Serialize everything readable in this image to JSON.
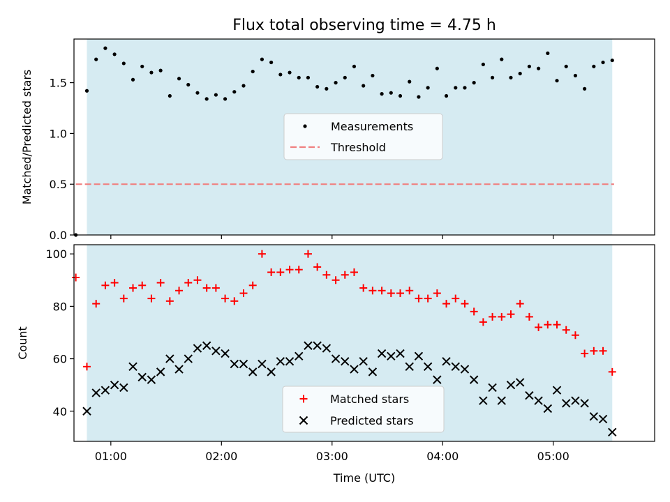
{
  "chart_data": [
    {
      "type": "scatter",
      "title": "Flux total observing time = 4.75 h",
      "xlabel": "",
      "ylabel": "Matched/Predicted stars",
      "x_range": [
        "00:40",
        "05:55"
      ],
      "ylim": [
        0,
        1.93
      ],
      "yticks": [
        0.0,
        0.5,
        1.0,
        1.5
      ],
      "ytick_labels": [
        "0.0",
        "0.5",
        "1.0",
        "1.5"
      ],
      "observing_window": [
        "00:47",
        "05:32"
      ],
      "window_color": "#add8e6",
      "legend_position": "center",
      "legend_labels": {
        "measurements": "Measurements",
        "threshold": "Threshold"
      },
      "threshold": {
        "value": 0.5,
        "x_range": [
          "00:41",
          "05:33"
        ],
        "color": "#f08080",
        "style": "dashed"
      },
      "series": [
        {
          "name": "Measurements",
          "color": "#000000",
          "marker": "dot",
          "x": [
            "00:41",
            "00:47",
            "00:52",
            "00:57",
            "01:02",
            "01:07",
            "01:12",
            "01:17",
            "01:22",
            "01:27",
            "01:32",
            "01:37",
            "01:42",
            "01:47",
            "01:52",
            "01:57",
            "02:02",
            "02:07",
            "02:12",
            "02:17",
            "02:22",
            "02:27",
            "02:32",
            "02:37",
            "02:42",
            "02:47",
            "02:52",
            "02:57",
            "03:02",
            "03:07",
            "03:12",
            "03:17",
            "03:22",
            "03:27",
            "03:32",
            "03:37",
            "03:42",
            "03:47",
            "03:52",
            "03:57",
            "04:02",
            "04:07",
            "04:12",
            "04:17",
            "04:22",
            "04:27",
            "04:32",
            "04:37",
            "04:42",
            "04:47",
            "04:52",
            "04:57",
            "05:02",
            "05:07",
            "05:12",
            "05:17",
            "05:22",
            "05:27",
            "05:32"
          ],
          "y": [
            0.0,
            1.42,
            1.73,
            1.84,
            1.78,
            1.69,
            1.53,
            1.66,
            1.6,
            1.62,
            1.37,
            1.54,
            1.48,
            1.4,
            1.34,
            1.38,
            1.34,
            1.41,
            1.47,
            1.61,
            1.73,
            1.7,
            1.58,
            1.6,
            1.55,
            1.55,
            1.46,
            1.44,
            1.5,
            1.55,
            1.66,
            1.47,
            1.57,
            1.39,
            1.4,
            1.37,
            1.51,
            1.36,
            1.45,
            1.64,
            1.37,
            1.45,
            1.45,
            1.5,
            1.68,
            1.55,
            1.73,
            1.55,
            1.59,
            1.66,
            1.64,
            1.79,
            1.52,
            1.66,
            1.57,
            1.44,
            1.66,
            1.7,
            1.72
          ]
        }
      ]
    },
    {
      "type": "scatter",
      "title": "",
      "xlabel": "Time (UTC)",
      "ylabel": "Count",
      "x_range": [
        "00:40",
        "05:55"
      ],
      "ylim": [
        28.5,
        103.5
      ],
      "yticks": [
        40,
        60,
        80,
        100
      ],
      "ytick_labels": [
        "40",
        "60",
        "80",
        "100"
      ],
      "xticks": [
        "01:00",
        "02:00",
        "03:00",
        "04:00",
        "05:00"
      ],
      "xtick_labels": [
        "01:00",
        "02:00",
        "03:00",
        "04:00",
        "05:00"
      ],
      "observing_window": [
        "00:47",
        "05:32"
      ],
      "window_color": "#add8e6",
      "legend_position": "lower center",
      "series": [
        {
          "name": "Matched stars",
          "color": "#ff0000",
          "marker": "plus",
          "x": [
            "00:41",
            "00:47",
            "00:52",
            "00:57",
            "01:02",
            "01:07",
            "01:12",
            "01:17",
            "01:22",
            "01:27",
            "01:32",
            "01:37",
            "01:42",
            "01:47",
            "01:52",
            "01:57",
            "02:02",
            "02:07",
            "02:12",
            "02:17",
            "02:22",
            "02:27",
            "02:32",
            "02:37",
            "02:42",
            "02:47",
            "02:52",
            "02:57",
            "03:02",
            "03:07",
            "03:12",
            "03:17",
            "03:22",
            "03:27",
            "03:32",
            "03:37",
            "03:42",
            "03:47",
            "03:52",
            "03:57",
            "04:02",
            "04:07",
            "04:12",
            "04:17",
            "04:22",
            "04:27",
            "04:32",
            "04:37",
            "04:42",
            "04:47",
            "04:52",
            "04:57",
            "05:02",
            "05:07",
            "05:12",
            "05:17",
            "05:22",
            "05:27",
            "05:32"
          ],
          "y": [
            91,
            57,
            81,
            88,
            89,
            83,
            87,
            88,
            83,
            89,
            82,
            86,
            89,
            90,
            87,
            87,
            83,
            82,
            85,
            88,
            100,
            93,
            93,
            94,
            94,
            100,
            95,
            92,
            90,
            92,
            93,
            87,
            86,
            86,
            85,
            85,
            86,
            83,
            83,
            85,
            81,
            83,
            81,
            78,
            74,
            76,
            76,
            77,
            81,
            76,
            72,
            73,
            73,
            71,
            69,
            62,
            63,
            63,
            55
          ]
        },
        {
          "name": "Predicted stars",
          "color": "#000000",
          "marker": "x",
          "x": [
            "00:47",
            "00:52",
            "00:57",
            "01:02",
            "01:07",
            "01:12",
            "01:17",
            "01:22",
            "01:27",
            "01:32",
            "01:37",
            "01:42",
            "01:47",
            "01:52",
            "01:57",
            "02:02",
            "02:07",
            "02:12",
            "02:17",
            "02:22",
            "02:27",
            "02:32",
            "02:37",
            "02:42",
            "02:47",
            "02:52",
            "02:57",
            "03:02",
            "03:07",
            "03:12",
            "03:17",
            "03:22",
            "03:27",
            "03:32",
            "03:37",
            "03:42",
            "03:47",
            "03:52",
            "03:57",
            "04:02",
            "04:07",
            "04:12",
            "04:17",
            "04:22",
            "04:27",
            "04:32",
            "04:37",
            "04:42",
            "04:47",
            "04:52",
            "04:57",
            "05:02",
            "05:07",
            "05:12",
            "05:17",
            "05:22",
            "05:27",
            "05:32"
          ],
          "y": [
            40,
            47,
            48,
            50,
            49,
            57,
            53,
            52,
            55,
            60,
            56,
            60,
            64,
            65,
            63,
            62,
            58,
            58,
            55,
            58,
            55,
            59,
            59,
            61,
            65,
            65,
            64,
            60,
            59,
            56,
            59,
            55,
            62,
            61,
            62,
            57,
            61,
            57,
            52,
            59,
            57,
            56,
            52,
            44,
            49,
            44,
            50,
            51,
            46,
            44,
            41,
            48,
            43,
            44,
            43,
            38,
            37,
            32
          ]
        }
      ]
    }
  ]
}
